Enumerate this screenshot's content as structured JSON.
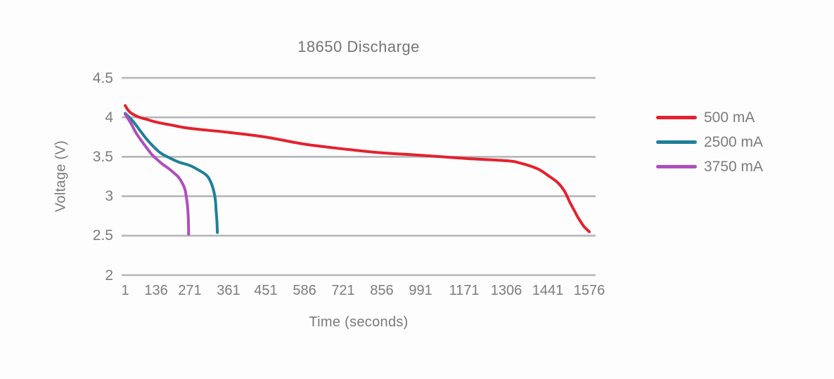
{
  "chart_data": {
    "type": "line",
    "title": "18650 Discharge",
    "xlabel": "Time (seconds)",
    "ylabel": "Voltage (V)",
    "x_axis": {
      "tick_labels": [
        "1",
        "136",
        "271",
        "361",
        "451",
        "586",
        "721",
        "856",
        "991",
        "1171",
        "1306",
        "1441",
        "1576"
      ],
      "tick_values": [
        1,
        136,
        271,
        361,
        451,
        586,
        721,
        856,
        991,
        1171,
        1306,
        1441,
        1576
      ]
    },
    "y_axis": {
      "tick_labels": [
        "4.5",
        "4",
        "3.5",
        "3",
        "2.5",
        "2"
      ],
      "ticks": [
        4.5,
        4,
        3.5,
        3,
        2.5,
        2
      ],
      "range": [
        2,
        4.5
      ],
      "grid": true
    },
    "legend": {
      "position": "right"
    },
    "series": [
      {
        "name": "500 mA",
        "color": "#e4212e",
        "points": [
          [
            1,
            4.15
          ],
          [
            20,
            4.07
          ],
          [
            55,
            4.01
          ],
          [
            100,
            3.97
          ],
          [
            136,
            3.94
          ],
          [
            200,
            3.9
          ],
          [
            271,
            3.86
          ],
          [
            361,
            3.81
          ],
          [
            451,
            3.75
          ],
          [
            586,
            3.66
          ],
          [
            721,
            3.6
          ],
          [
            856,
            3.55
          ],
          [
            991,
            3.52
          ],
          [
            1171,
            3.48
          ],
          [
            1306,
            3.45
          ],
          [
            1352,
            3.42
          ],
          [
            1407,
            3.35
          ],
          [
            1443,
            3.26
          ],
          [
            1474,
            3.17
          ],
          [
            1496,
            3.06
          ],
          [
            1512,
            2.93
          ],
          [
            1527,
            2.82
          ],
          [
            1541,
            2.72
          ],
          [
            1558,
            2.62
          ],
          [
            1576,
            2.55
          ]
        ]
      },
      {
        "name": "2500 mA",
        "color": "#1f7f99",
        "points": [
          [
            1,
            4.05
          ],
          [
            32,
            3.96
          ],
          [
            59,
            3.86
          ],
          [
            90,
            3.74
          ],
          [
            121,
            3.64
          ],
          [
            153,
            3.55
          ],
          [
            187,
            3.49
          ],
          [
            229,
            3.43
          ],
          [
            271,
            3.39
          ],
          [
            292,
            3.33
          ],
          [
            309,
            3.27
          ],
          [
            318,
            3.2
          ],
          [
            325,
            3.1
          ],
          [
            330,
            2.97
          ],
          [
            332,
            2.82
          ],
          [
            334,
            2.68
          ],
          [
            335,
            2.54
          ]
        ]
      },
      {
        "name": "3750 mA",
        "color": "#ae4fbe",
        "points": [
          [
            1,
            4.04
          ],
          [
            25,
            3.93
          ],
          [
            47,
            3.81
          ],
          [
            68,
            3.72
          ],
          [
            93,
            3.62
          ],
          [
            117,
            3.53
          ],
          [
            142,
            3.46
          ],
          [
            164,
            3.4
          ],
          [
            187,
            3.35
          ],
          [
            209,
            3.29
          ],
          [
            226,
            3.24
          ],
          [
            240,
            3.17
          ],
          [
            251,
            3.09
          ],
          [
            257,
            2.99
          ],
          [
            262,
            2.86
          ],
          [
            265,
            2.7
          ],
          [
            266,
            2.52
          ]
        ]
      }
    ],
    "style": {
      "gridline_color": "#b3b6b9",
      "text_color": "#7a7a7a",
      "background": "#fdfdfd",
      "line_width": 4
    }
  }
}
